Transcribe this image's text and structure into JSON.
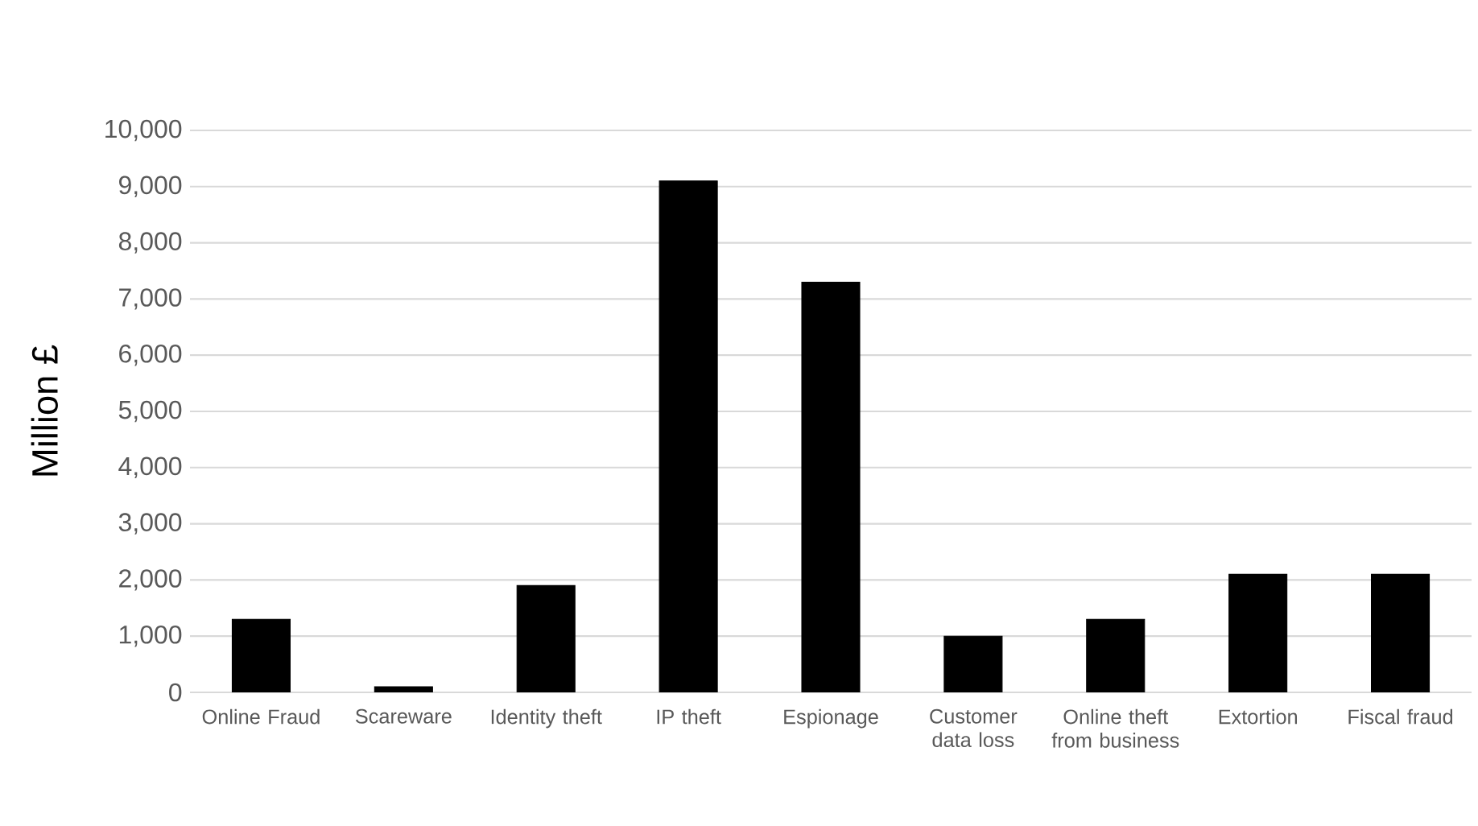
{
  "chart_data": {
    "type": "bar",
    "ylabel": "Million £",
    "categories": [
      "Online Fraud",
      "Scareware",
      "Identity theft",
      "IP theft",
      "Espionage",
      "Customer data loss",
      "Online theft from business",
      "Extortion",
      "Fiscal fraud"
    ],
    "values": [
      1300,
      100,
      1900,
      9100,
      7300,
      1000,
      1300,
      2100,
      2100
    ],
    "color": "#000000",
    "ylim": [
      0,
      10000
    ],
    "yticks": [
      {
        "value": 0,
        "label": "0"
      },
      {
        "value": 1000,
        "label": "1,000"
      },
      {
        "value": 2000,
        "label": "2,000"
      },
      {
        "value": 3000,
        "label": "3,000"
      },
      {
        "value": 4000,
        "label": "4,000"
      },
      {
        "value": 5000,
        "label": "5,000"
      },
      {
        "value": 6000,
        "label": "6,000"
      },
      {
        "value": 7000,
        "label": "7,000"
      },
      {
        "value": 8000,
        "label": "8,000"
      },
      {
        "value": 9000,
        "label": "9,000"
      },
      {
        "value": 10000,
        "label": "10,000"
      }
    ],
    "grid": "y"
  }
}
